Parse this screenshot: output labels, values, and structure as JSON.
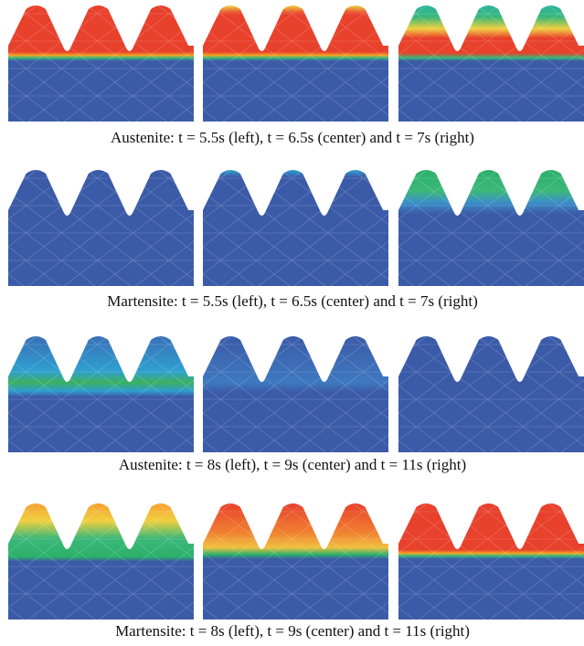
{
  "figure": {
    "rows": [
      {
        "caption": "Austenite: t = 5.5s (left), t = 6.5s (center) and t = 7s (right)"
      },
      {
        "caption": "Martensite: t = 5.5s (left), t = 6.5s (center) and t = 7s (right)"
      },
      {
        "caption": "Austenite: t = 8s (left), t = 9s (center) and t = 11s (right)"
      },
      {
        "caption": "Martensite: t = 8s (left), t = 9s (center) and t = 11s (right)"
      }
    ]
  }
}
